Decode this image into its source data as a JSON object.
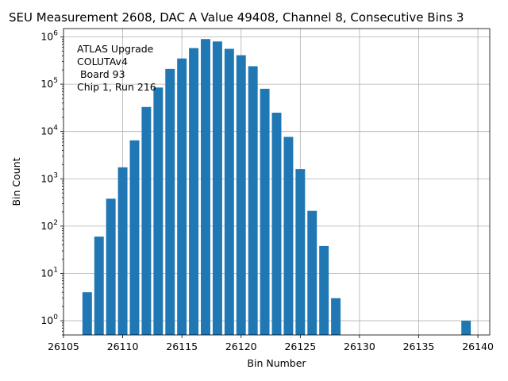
{
  "chart_data": {
    "type": "bar",
    "title": "SEU Measurement 2608, DAC A Value 49408, Channel 8, Consecutive Bins 3",
    "xlabel": "Bin Number",
    "ylabel": "Bin Count",
    "yscale": "log",
    "xlim": [
      26105,
      26141
    ],
    "ylim": [
      0.5,
      1500000
    ],
    "grid": true,
    "x_ticks": [
      26105,
      26110,
      26115,
      26120,
      26125,
      26130,
      26135,
      26140
    ],
    "y_ticks": [
      {
        "value": 1,
        "base": "10",
        "exp": "0"
      },
      {
        "value": 10,
        "base": "10",
        "exp": "1"
      },
      {
        "value": 100,
        "base": "10",
        "exp": "2"
      },
      {
        "value": 1000,
        "base": "10",
        "exp": "3"
      },
      {
        "value": 10000,
        "base": "10",
        "exp": "4"
      },
      {
        "value": 100000,
        "base": "10",
        "exp": "5"
      },
      {
        "value": 1000000,
        "base": "10",
        "exp": "6"
      }
    ],
    "bar_color": "#1f77b4",
    "bars": [
      {
        "x": 26107,
        "y": 4
      },
      {
        "x": 26108,
        "y": 60
      },
      {
        "x": 26109,
        "y": 380
      },
      {
        "x": 26110,
        "y": 1750
      },
      {
        "x": 26111,
        "y": 6500
      },
      {
        "x": 26112,
        "y": 33000
      },
      {
        "x": 26113,
        "y": 85000
      },
      {
        "x": 26114,
        "y": 210000
      },
      {
        "x": 26115,
        "y": 350000
      },
      {
        "x": 26116,
        "y": 580000
      },
      {
        "x": 26117,
        "y": 900000
      },
      {
        "x": 26118,
        "y": 800000
      },
      {
        "x": 26119,
        "y": 560000
      },
      {
        "x": 26120,
        "y": 410000
      },
      {
        "x": 26121,
        "y": 240000
      },
      {
        "x": 26122,
        "y": 80000
      },
      {
        "x": 26123,
        "y": 25000
      },
      {
        "x": 26124,
        "y": 7700
      },
      {
        "x": 26125,
        "y": 1600
      },
      {
        "x": 26126,
        "y": 210
      },
      {
        "x": 26127,
        "y": 38
      },
      {
        "x": 26128,
        "y": 3
      },
      {
        "x": 26139,
        "y": 1
      }
    ],
    "annotation": [
      "ATLAS Upgrade",
      "COLUTAv4",
      " Board 93",
      "Chip 1, Run 216"
    ]
  }
}
